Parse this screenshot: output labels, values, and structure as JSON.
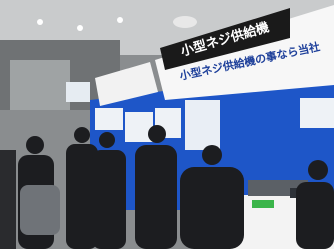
{
  "signs": {
    "main_title": "小型ネジ供給機",
    "subtitle": "小型ネジ供給機の事なら当社"
  }
}
